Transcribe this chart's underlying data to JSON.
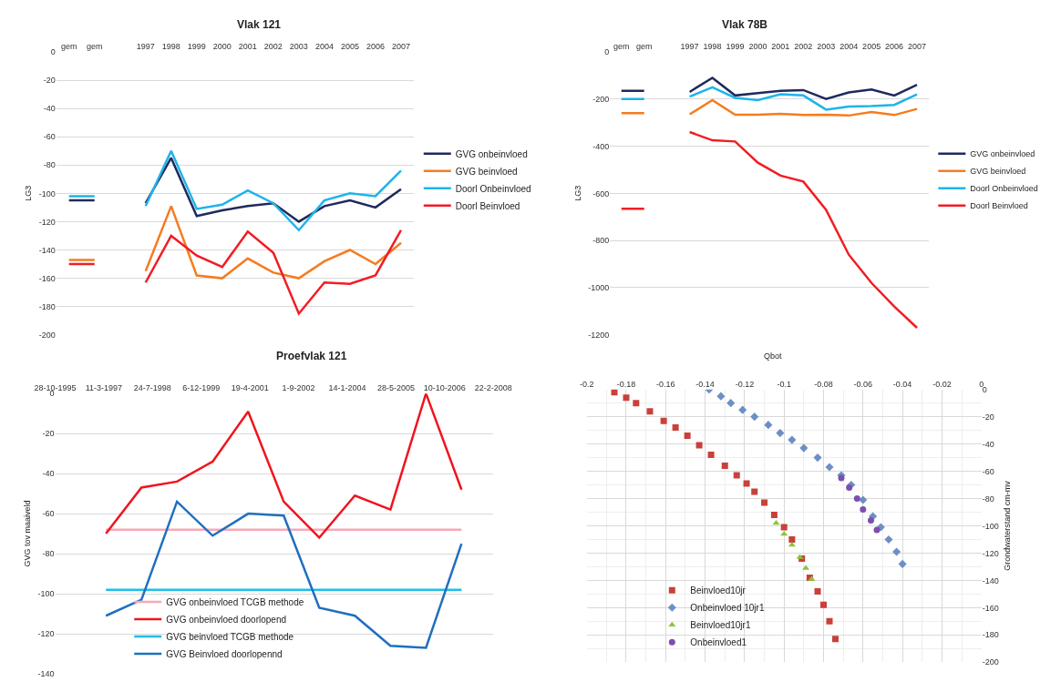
{
  "chart_data": [
    {
      "type": "line",
      "title": "Vlak 121",
      "ylabel": "LG3",
      "categories": [
        "gem",
        "gem",
        null,
        "1997",
        "1998",
        "1999",
        "2000",
        "2001",
        "2002",
        "2003",
        "2004",
        "2005",
        "2006",
        "2007"
      ],
      "ylim": [
        -200,
        0
      ],
      "yticks": [
        0,
        -20,
        -40,
        -60,
        -80,
        -100,
        -120,
        -140,
        -160,
        -180,
        -200
      ],
      "grid": "y",
      "legend": "right",
      "marker": "none",
      "series": [
        {
          "name": "GVG onbeinvloed",
          "color": "#1f2a5c",
          "values": [
            -105,
            -105,
            null,
            -107,
            -75,
            -116,
            -112,
            -109,
            -107,
            -120,
            -109,
            -105,
            -110,
            -97
          ]
        },
        {
          "name": "GVG beinvloed",
          "color": "#f57c20",
          "values": [
            -147,
            -147,
            null,
            -155,
            -109,
            -158,
            -160,
            -146,
            -156,
            -160,
            -148,
            -140,
            -150,
            -135
          ]
        },
        {
          "name": "Doorl Onbeinvloed",
          "color": "#1eb4ea",
          "values": [
            -102,
            -102,
            null,
            -109,
            -70,
            -111,
            -108,
            -98,
            -107,
            -126,
            -105,
            -100,
            -102,
            -84
          ]
        },
        {
          "name": "Doorl Beinvloed",
          "color": "#f21c24",
          "values": [
            -150,
            -150,
            null,
            -163,
            -130,
            -144,
            -152,
            -127,
            -142,
            -185,
            -163,
            -164,
            -158,
            -126
          ]
        }
      ]
    },
    {
      "type": "line",
      "title": "Vlak 78B",
      "ylabel": "LG3",
      "categories": [
        "gem",
        "gem",
        null,
        "1997",
        "1998",
        "1999",
        "2000",
        "2001",
        "2002",
        "2003",
        "2004",
        "2005",
        "2006",
        "2007"
      ],
      "ylim": [
        -1200,
        0
      ],
      "yticks": [
        0,
        -200,
        -400,
        -600,
        -800,
        -1000,
        -1200
      ],
      "grid": "y",
      "legend": "right",
      "marker": "none",
      "series": [
        {
          "name": "GVG onbeinvloed",
          "color": "#1f2a5c",
          "values": [
            -165,
            -165,
            null,
            -170,
            -110,
            -185,
            -175,
            -165,
            -162,
            -200,
            -172,
            -160,
            -185,
            -140
          ]
        },
        {
          "name": "GVG beinvloed",
          "color": "#f57c20",
          "values": [
            -260,
            -260,
            null,
            -265,
            -205,
            -267,
            -267,
            -263,
            -268,
            -267,
            -270,
            -255,
            -268,
            -242
          ]
        },
        {
          "name": "Doorl Onbeinvloed",
          "color": "#1eb4ea",
          "values": [
            -200,
            -200,
            null,
            -190,
            -150,
            -195,
            -205,
            -180,
            -185,
            -245,
            -232,
            -230,
            -225,
            -180
          ]
        },
        {
          "name": "Doorl Beinvloed",
          "color": "#f21c24",
          "values": [
            -665,
            -665,
            null,
            -340,
            -375,
            -380,
            -470,
            -525,
            -550,
            -670,
            -860,
            -980,
            -1080,
            -1170
          ]
        }
      ]
    },
    {
      "type": "line",
      "title": "Proefvlak 121",
      "ylabel": "GVG tov maaiveld",
      "x": [
        "1997-04-01",
        "1998-04-01",
        "1999-04-01",
        "2000-04-01",
        "2001-04-01",
        "2002-04-01",
        "2003-04-01",
        "2004-04-01",
        "2005-04-01",
        "2006-04-01",
        "2007-04-01"
      ],
      "xlim": [
        "1995-10-28",
        "2008-02-22"
      ],
      "xticks": [
        {
          "value": "1995-10-28",
          "label": "28-10-1995"
        },
        {
          "value": "1997-03-11",
          "label": "11-3-1997"
        },
        {
          "value": "1998-07-24",
          "label": "24-7-1998"
        },
        {
          "value": "1999-12-06",
          "label": "6-12-1999"
        },
        {
          "value": "2001-04-19",
          "label": "19-4-2001"
        },
        {
          "value": "2002-09-01",
          "label": "1-9-2002"
        },
        {
          "value": "2004-01-14",
          "label": "14-1-2004"
        },
        {
          "value": "2005-05-28",
          "label": "28-5-2005"
        },
        {
          "value": "2006-10-10",
          "label": "10-10-2006"
        },
        {
          "value": "2008-02-22",
          "label": "22-2-2008"
        }
      ],
      "ylim": [
        -140,
        0
      ],
      "yticks": [
        0,
        -20,
        -40,
        -60,
        -80,
        -100,
        -120,
        -140
      ],
      "grid": "y",
      "legend": "bottom left",
      "marker": "none",
      "series": [
        {
          "name": "GVG onbeinvloed TCGB methode",
          "color": "#f7a8b8",
          "values": [
            -68,
            -68,
            -68,
            -68,
            -68,
            -68,
            -68,
            -68,
            -68,
            -68,
            -68
          ]
        },
        {
          "name": "GVG onbeinvloed doorlopend",
          "color": "#f0141e",
          "values": [
            -70,
            -47,
            -44,
            -34,
            -9,
            -54,
            -72,
            -51,
            -58,
            0,
            -48
          ]
        },
        {
          "name": "GVG beinvloed TCGB methode",
          "color": "#1ebee8",
          "values": [
            -98,
            -98,
            -98,
            -98,
            -98,
            -98,
            -98,
            -98,
            -98,
            -98,
            -98
          ]
        },
        {
          "name": "GVG Beinvloed doorlopennd",
          "color": "#1f6fbf",
          "values": [
            -111,
            -103,
            -54,
            -71,
            -60,
            -61,
            -107,
            -111,
            -126,
            -127,
            -75
          ]
        }
      ]
    },
    {
      "type": "scatter",
      "xlabel": "Qbot",
      "ylabel": "Grondwaterstand cm-mv",
      "xlim": [
        -0.2,
        0
      ],
      "xticks": [
        -0.2,
        -0.18,
        -0.16,
        -0.14,
        -0.12,
        -0.1,
        -0.08,
        -0.06,
        -0.04,
        -0.02,
        0
      ],
      "ylim": [
        -200,
        0
      ],
      "yticks": [
        0,
        -20,
        -40,
        -60,
        -80,
        -100,
        -120,
        -140,
        -160,
        -180,
        -200
      ],
      "grid": true,
      "legend": "bottom left",
      "series": [
        {
          "name": "Beinvloed10jr",
          "color": "#c8413a",
          "marker": "square",
          "x": [
            -0.186,
            -0.18,
            -0.175,
            -0.168,
            -0.161,
            -0.155,
            -0.149,
            -0.143,
            -0.137,
            -0.13,
            -0.124,
            -0.119,
            -0.115,
            -0.11,
            -0.105,
            -0.1,
            -0.096,
            -0.091,
            -0.087,
            -0.083,
            -0.08,
            -0.077,
            -0.074
          ],
          "values": [
            -2,
            -6,
            -10,
            -16,
            -23,
            -28,
            -34,
            -41,
            -48,
            -56,
            -63,
            -69,
            -75,
            -83,
            -92,
            -101,
            -110,
            -124,
            -138,
            -148,
            -158,
            -170,
            -183
          ]
        },
        {
          "name": "Onbeinvloed 10jr1",
          "color": "#6d8fc6",
          "marker": "diamond",
          "x": [
            -0.138,
            -0.132,
            -0.127,
            -0.121,
            -0.115,
            -0.108,
            -0.102,
            -0.096,
            -0.09,
            -0.083,
            -0.077,
            -0.071,
            -0.066,
            -0.06,
            -0.055,
            -0.051,
            -0.047,
            -0.043,
            -0.04
          ],
          "values": [
            0,
            -5,
            -10,
            -15,
            -20,
            -26,
            -32,
            -37,
            -43,
            -50,
            -57,
            -63,
            -70,
            -81,
            -93,
            -101,
            -110,
            -119,
            -128
          ]
        },
        {
          "name": "Beinvloed10jr1",
          "color": "#8cc43c",
          "marker": "triangle",
          "x": [
            -0.104,
            -0.1,
            -0.096,
            -0.092,
            -0.089,
            -0.086
          ],
          "values": [
            -98,
            -106,
            -114,
            -123,
            -131,
            -139
          ]
        },
        {
          "name": "Onbeinvloed1",
          "color": "#7b4fb0",
          "marker": "circle",
          "x": [
            -0.071,
            -0.067,
            -0.063,
            -0.06,
            -0.056,
            -0.053
          ],
          "values": [
            -65,
            -72,
            -80,
            -88,
            -96,
            -103
          ]
        }
      ]
    }
  ]
}
